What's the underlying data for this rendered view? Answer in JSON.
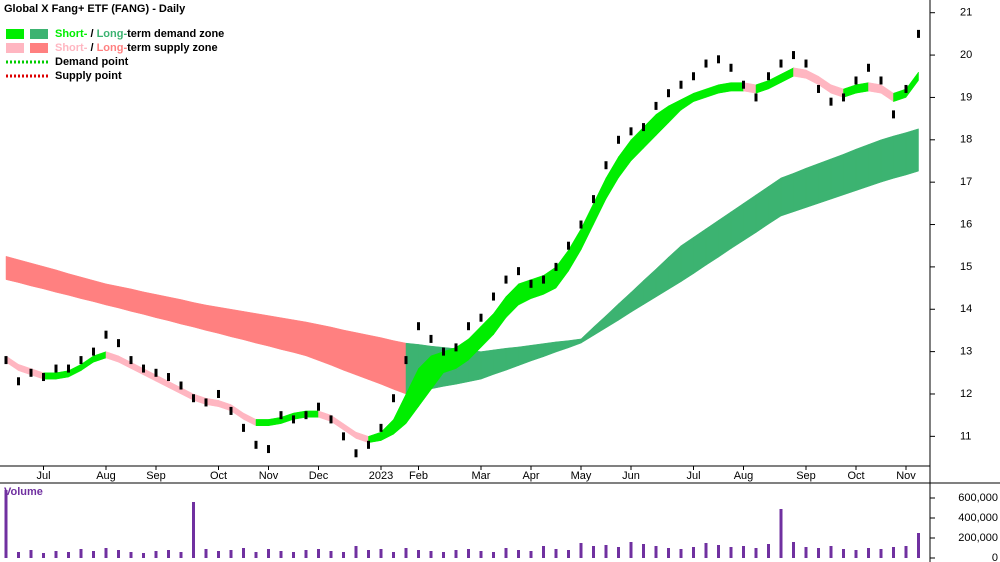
{
  "chart_data": {
    "type": "candlestick-zones",
    "title": "Global X Fang+ ETF (FANG) - Daily",
    "categories": [
      null,
      null,
      null,
      "Jul",
      null,
      null,
      null,
      null,
      "Aug",
      null,
      null,
      null,
      "Sep",
      null,
      null,
      null,
      null,
      "Oct",
      null,
      null,
      null,
      "Nov",
      null,
      null,
      null,
      "Dec",
      null,
      null,
      null,
      null,
      "2023",
      null,
      null,
      "Feb",
      null,
      null,
      null,
      null,
      "Mar",
      null,
      null,
      null,
      "Apr",
      null,
      null,
      null,
      "May",
      null,
      null,
      null,
      "Jun",
      null,
      null,
      null,
      null,
      "Jul",
      null,
      null,
      null,
      "Aug",
      null,
      null,
      null,
      null,
      "Sep",
      null,
      null,
      null,
      "Oct",
      null,
      null,
      null,
      "Nov",
      null
    ],
    "ylim": [
      10.3,
      21.3
    ],
    "yticks": [
      11,
      12,
      13,
      14,
      15,
      16,
      17,
      18,
      19,
      20,
      21
    ],
    "series": [
      {
        "name": "Price",
        "color": "#000000",
        "values": [
          12.8,
          12.3,
          12.5,
          12.4,
          12.6,
          12.6,
          12.8,
          13.0,
          13.4,
          13.2,
          12.8,
          12.6,
          12.5,
          12.4,
          12.2,
          11.9,
          11.8,
          12.0,
          11.6,
          11.2,
          10.8,
          10.7,
          11.5,
          11.4,
          11.5,
          11.7,
          11.4,
          11.0,
          10.6,
          10.8,
          11.2,
          11.9,
          12.8,
          13.6,
          13.3,
          13.0,
          13.1,
          13.6,
          13.8,
          14.3,
          14.7,
          14.9,
          14.6,
          14.7,
          15.0,
          15.5,
          16.0,
          16.6,
          17.4,
          18.0,
          18.2,
          18.3,
          18.8,
          19.1,
          19.3,
          19.5,
          19.8,
          19.9,
          19.7,
          19.3,
          19.0,
          19.5,
          19.8,
          20.0,
          19.8,
          19.2,
          18.9,
          19.0,
          19.4,
          19.7,
          19.4,
          18.6,
          19.2,
          20.5
        ]
      }
    ],
    "zones": [
      {
        "name": "Long-term zone",
        "demand_color": "#3cb371",
        "supply_color": "#ff8080",
        "upper": [
          15.25,
          15.17,
          15.09,
          15.01,
          14.93,
          14.84,
          14.76,
          14.68,
          14.6,
          14.54,
          14.48,
          14.41,
          14.35,
          14.29,
          14.23,
          14.16,
          14.1,
          14.05,
          14.0,
          13.95,
          13.9,
          13.85,
          13.8,
          13.75,
          13.7,
          13.64,
          13.58,
          13.51,
          13.45,
          13.39,
          13.33,
          13.26,
          13.2,
          13.17,
          13.13,
          13.1,
          13.07,
          13.03,
          13.0,
          13.04,
          13.08,
          13.11,
          13.15,
          13.19,
          13.23,
          13.26,
          13.3,
          13.58,
          13.85,
          14.13,
          14.4,
          14.68,
          14.95,
          15.23,
          15.5,
          15.7,
          15.9,
          16.1,
          16.3,
          16.5,
          16.7,
          16.9,
          17.1,
          17.21,
          17.33,
          17.44,
          17.55,
          17.66,
          17.78,
          17.89,
          18.0,
          18.09,
          18.17,
          18.26
        ],
        "lower": [
          14.7,
          14.63,
          14.55,
          14.48,
          14.4,
          14.33,
          14.25,
          14.18,
          14.1,
          14.03,
          13.95,
          13.88,
          13.8,
          13.73,
          13.65,
          13.58,
          13.5,
          13.43,
          13.35,
          13.28,
          13.2,
          13.13,
          13.05,
          12.98,
          12.9,
          12.79,
          12.68,
          12.56,
          12.45,
          12.34,
          12.23,
          12.11,
          12.0,
          12.06,
          12.12,
          12.18,
          12.23,
          12.29,
          12.35,
          12.46,
          12.56,
          12.67,
          12.78,
          12.88,
          12.99,
          13.09,
          13.2,
          13.38,
          13.56,
          13.74,
          13.93,
          14.11,
          14.29,
          14.47,
          14.65,
          14.84,
          15.04,
          15.23,
          15.43,
          15.62,
          15.81,
          16.01,
          16.2,
          16.3,
          16.4,
          16.5,
          16.6,
          16.7,
          16.8,
          16.9,
          17.0,
          17.09,
          17.17,
          17.26
        ]
      },
      {
        "name": "Short-term zone",
        "demand_color": "#00ee00",
        "supply_color": "#ffb6c1",
        "upper": [
          12.9,
          12.7,
          12.6,
          12.5,
          12.5,
          12.55,
          12.7,
          12.9,
          13.0,
          12.9,
          12.75,
          12.6,
          12.45,
          12.3,
          12.15,
          12.0,
          11.9,
          11.85,
          11.75,
          11.55,
          11.4,
          11.4,
          11.45,
          11.55,
          11.6,
          11.6,
          11.5,
          11.3,
          11.1,
          11.0,
          11.1,
          11.4,
          12.0,
          12.6,
          12.9,
          13.0,
          13.1,
          13.3,
          13.6,
          13.9,
          14.3,
          14.6,
          14.7,
          14.8,
          15.0,
          15.4,
          15.9,
          16.5,
          17.1,
          17.6,
          18.0,
          18.3,
          18.6,
          18.8,
          18.95,
          19.1,
          19.2,
          19.3,
          19.35,
          19.35,
          19.3,
          19.4,
          19.55,
          19.7,
          19.65,
          19.5,
          19.3,
          19.2,
          19.3,
          19.35,
          19.3,
          19.1,
          19.2,
          19.6
        ],
        "lower": [
          12.75,
          12.55,
          12.45,
          12.35,
          12.35,
          12.4,
          12.55,
          12.75,
          12.85,
          12.75,
          12.6,
          12.45,
          12.3,
          12.15,
          12.0,
          11.85,
          11.75,
          11.7,
          11.6,
          11.4,
          11.25,
          11.25,
          11.3,
          11.4,
          11.45,
          11.45,
          11.35,
          11.15,
          10.95,
          10.85,
          10.9,
          11.05,
          11.3,
          11.7,
          12.1,
          12.5,
          12.6,
          12.8,
          13.1,
          13.4,
          13.8,
          14.1,
          14.25,
          14.35,
          14.5,
          14.9,
          15.4,
          16.0,
          16.6,
          17.1,
          17.5,
          17.8,
          18.1,
          18.4,
          18.7,
          18.9,
          19.0,
          19.1,
          19.15,
          19.15,
          19.1,
          19.2,
          19.35,
          19.5,
          19.45,
          19.3,
          19.1,
          19.0,
          19.1,
          19.15,
          19.1,
          18.9,
          19.0,
          19.4
        ]
      }
    ],
    "legend": [
      {
        "parts": [
          "Short-",
          " / ",
          "Long-",
          "term demand zone"
        ],
        "colors": [
          "#00ee00",
          "#3cb371"
        ],
        "style": "box"
      },
      {
        "parts": [
          "Short-",
          " / ",
          "Long-",
          "term supply zone"
        ],
        "colors": [
          "#ffb6c1",
          "#ff8080"
        ],
        "style": "box"
      },
      {
        "parts": [
          "Demand point"
        ],
        "colors": [
          "#00cc00"
        ],
        "style": "dotted"
      },
      {
        "parts": [
          "Supply point"
        ],
        "colors": [
          "#dd0000"
        ],
        "style": "dotted"
      }
    ],
    "volume": {
      "label": "Volume",
      "color": "#7030a0",
      "ylim": [
        0,
        750000
      ],
      "yticks": [
        {
          "value": 0,
          "label": "0"
        },
        {
          "value": 200000,
          "label": "200,000"
        },
        {
          "value": 400000,
          "label": "400,000"
        },
        {
          "value": 600000,
          "label": "600,000"
        }
      ],
      "values": [
        680000,
        60000,
        80000,
        50000,
        70000,
        60000,
        90000,
        70000,
        100000,
        80000,
        60000,
        50000,
        70000,
        80000,
        60000,
        560000,
        90000,
        70000,
        80000,
        100000,
        60000,
        90000,
        70000,
        60000,
        80000,
        90000,
        70000,
        60000,
        120000,
        80000,
        90000,
        60000,
        100000,
        80000,
        70000,
        60000,
        80000,
        90000,
        70000,
        60000,
        100000,
        80000,
        70000,
        120000,
        90000,
        80000,
        150000,
        120000,
        130000,
        110000,
        160000,
        140000,
        120000,
        100000,
        90000,
        110000,
        150000,
        130000,
        110000,
        120000,
        100000,
        140000,
        490000,
        160000,
        110000,
        100000,
        120000,
        90000,
        80000,
        100000,
        90000,
        110000,
        120000,
        250000
      ]
    }
  }
}
